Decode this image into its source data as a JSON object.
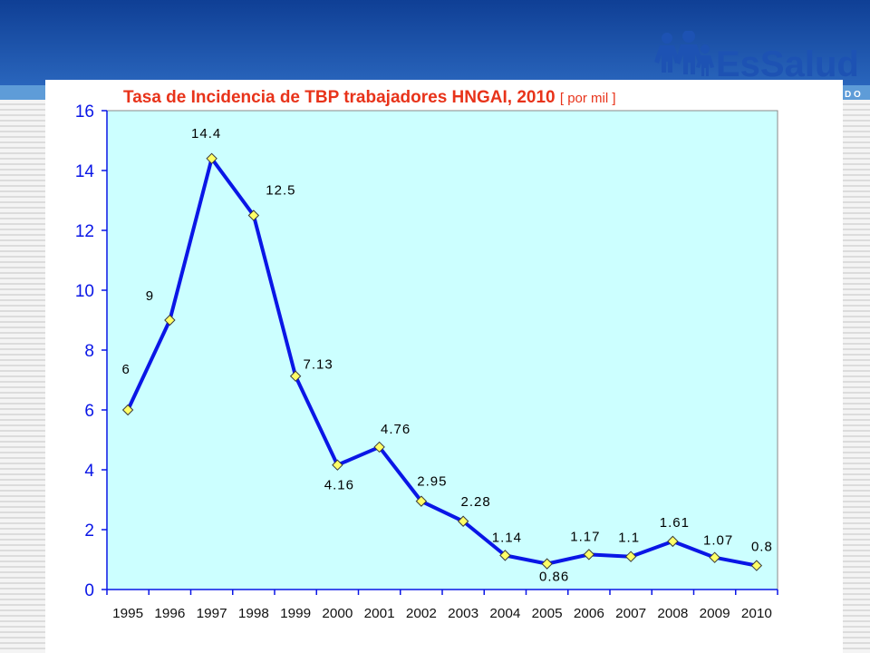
{
  "slide": {
    "banner_color": "#1d4fa6",
    "banner_light_color": "#5e9cd8",
    "background_pattern": "light-gray-horizontal-lines",
    "corner_tag": "D O"
  },
  "brand": {
    "name": "EsSalud",
    "icon": "family-figures-icon"
  },
  "chart_data": {
    "type": "line",
    "title": "Tasa de Incidencia de TBP trabajadores HNGAI, 2010",
    "unit_label": "[ por mil ]",
    "xlabel": "",
    "ylabel": "",
    "categories": [
      "1995",
      "1996",
      "1997",
      "1998",
      "1999",
      "2000",
      "2001",
      "2002",
      "2003",
      "2004",
      "2005",
      "2006",
      "2007",
      "2008",
      "2009",
      "2010"
    ],
    "series": [
      {
        "values": [
          6,
          9,
          14.4,
          12.5,
          7.13,
          4.16,
          4.76,
          2.95,
          2.28,
          1.14,
          0.86,
          1.17,
          1.1,
          1.61,
          1.07,
          0.8
        ],
        "labels": [
          "6",
          "9",
          "14.4",
          "12.5",
          "7.13",
          "4.16",
          "4.76",
          "2.95",
          "2.28",
          "1.14",
          "0.86",
          "1.17",
          "1.1",
          "1.61",
          "1.07",
          "0.8"
        ],
        "line_color": "#0a16e6",
        "marker_color": "#ffff66",
        "marker": "diamond"
      }
    ],
    "ylim": [
      0,
      16
    ],
    "yticks": [
      "0",
      "2",
      "4",
      "6",
      "8",
      "10",
      "12",
      "14",
      "16"
    ],
    "grid": false,
    "legend": "none",
    "plot_background": "#ccffff",
    "axis_color": "#0a16e6",
    "title_color": "#e8331a"
  }
}
